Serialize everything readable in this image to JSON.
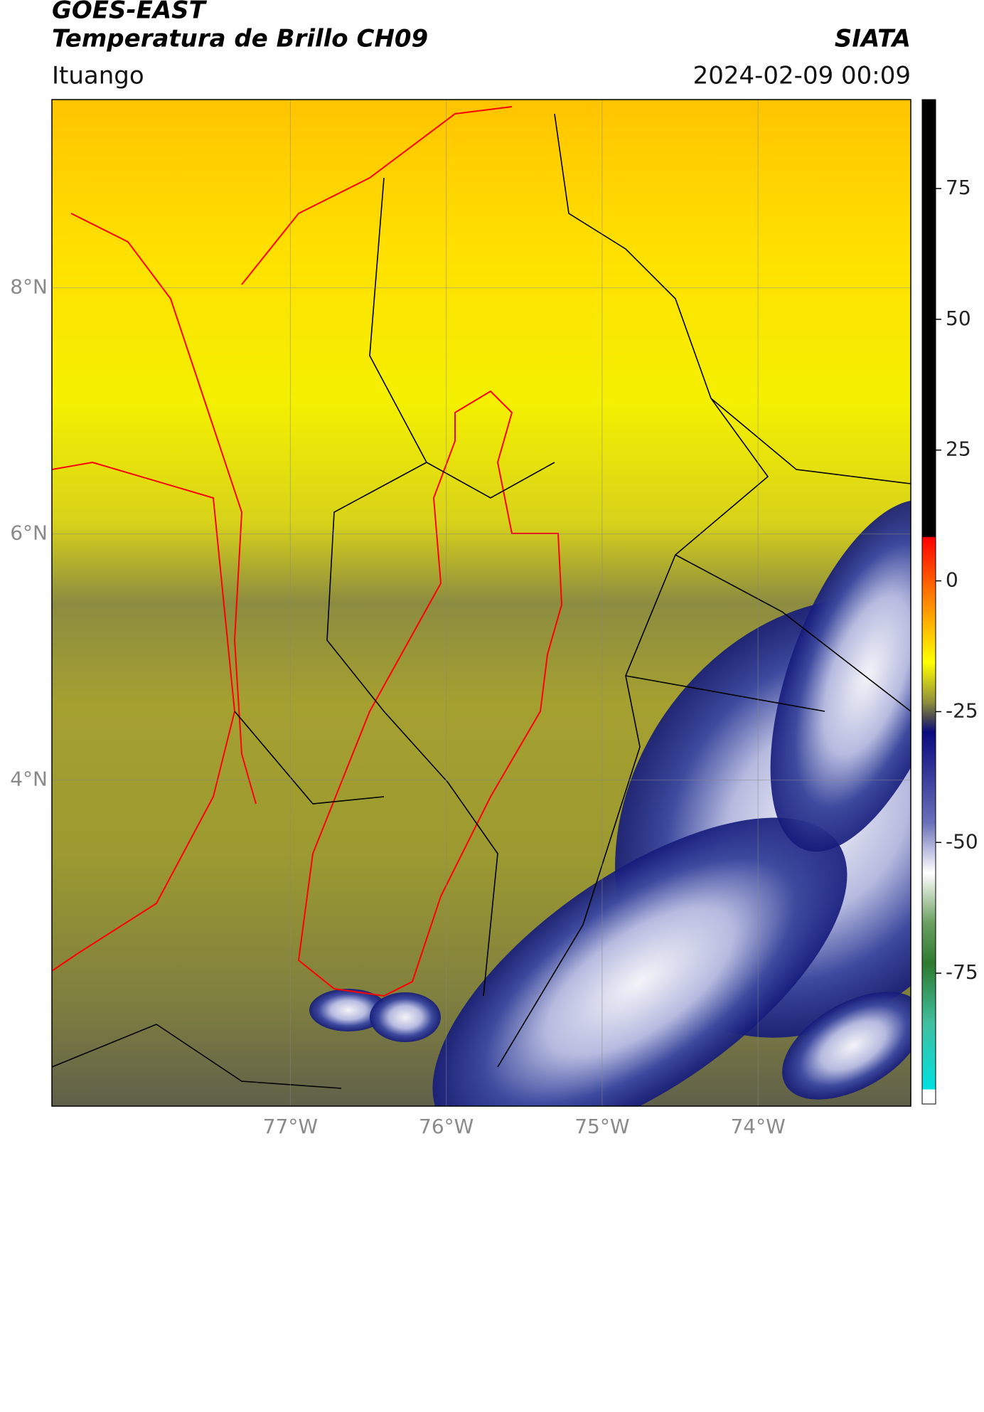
{
  "header": {
    "title": [
      "GOES-EAST",
      "Temperatura de Brillo CH09"
    ],
    "source": "SIATA",
    "location": "Ituango",
    "datetime": "2024-02-09 00:09"
  },
  "map": {
    "xlim": [
      -78.53,
      -73.02
    ],
    "ylim": [
      1.35,
      9.53
    ],
    "xticks": [
      {
        "value": -77,
        "label": "77°W"
      },
      {
        "value": -76,
        "label": "76°W"
      },
      {
        "value": -75,
        "label": "75°W"
      },
      {
        "value": -74,
        "label": "74°W"
      }
    ],
    "yticks": [
      {
        "value": 8,
        "label": "8°N"
      },
      {
        "value": 6,
        "label": "6°N"
      },
      {
        "value": 4,
        "label": "4°N"
      }
    ],
    "grid": true
  },
  "colorbar": {
    "vlim": [
      -100,
      92
    ],
    "ticks": [
      75,
      50,
      25,
      0,
      -25,
      -50,
      -75
    ]
  }
}
